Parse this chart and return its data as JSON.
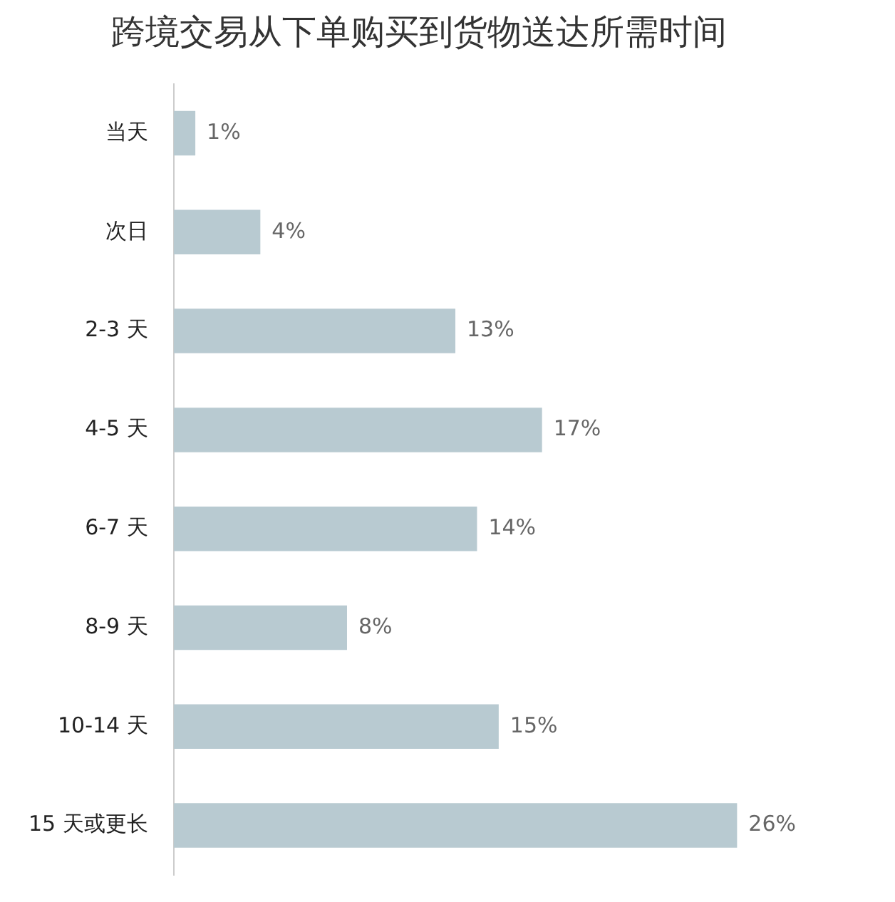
{
  "chart_data": {
    "type": "bar",
    "orientation": "horizontal",
    "title": "跨境交易从下单购买到货物送达所需时间",
    "categories": [
      "当天",
      "次日",
      "2-3 天",
      "4-5 天",
      "6-7 天",
      "8-9 天",
      "10-14 天",
      "15 天或更长"
    ],
    "values": [
      1,
      4,
      13,
      17,
      14,
      8,
      15,
      26
    ],
    "value_labels": [
      "1%",
      "4%",
      "13%",
      "17%",
      "14%",
      "8%",
      "15%",
      "26%"
    ],
    "color": "#b8cad1",
    "legend": false,
    "tick_labels": "y"
  }
}
